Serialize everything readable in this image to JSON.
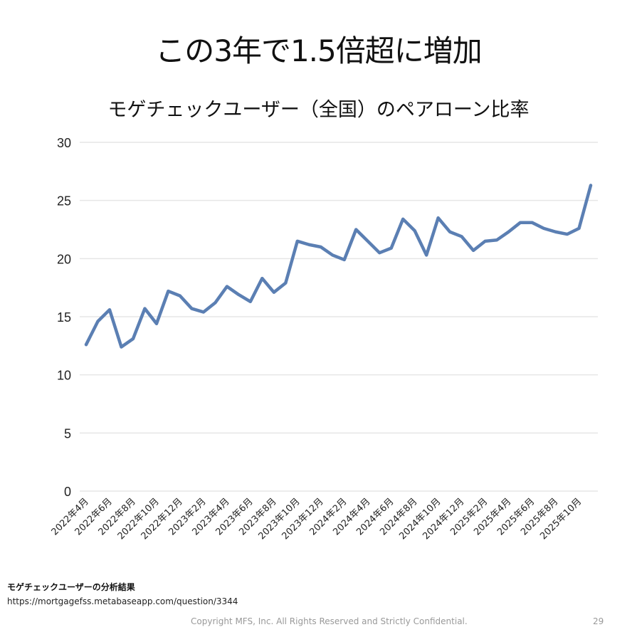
{
  "slide": {
    "title": "この3年で1.5倍超に増加",
    "source_label": "モゲチェックユーザーの分析結果",
    "source_url": "https://mortgagefss.metabaseapp.com/question/3344",
    "copyright": "Copyright MFS, Inc.  All Rights Reserved and Strictly Confidential.",
    "page_number": "29"
  },
  "chart_data": {
    "type": "line",
    "title": "モゲチェックユーザー（全国）のペアローン比率",
    "xlabel": "",
    "ylabel": "",
    "ylim": [
      0,
      30
    ],
    "yticks": [
      "0",
      "5",
      "10",
      "15",
      "20",
      "25",
      "30"
    ],
    "grid": true,
    "color": "#5b7fb3",
    "x_tick_labels": [
      "2022年4月",
      "2022年6月",
      "2022年8月",
      "2022年10月",
      "2022年12月",
      "2023年2月",
      "2023年4月",
      "2023年6月",
      "2023年8月",
      "2023年10月",
      "2023年12月",
      "2024年2月",
      "2024年4月",
      "2024年6月",
      "2024年8月",
      "2024年10月",
      "2024年12月",
      "2025年2月",
      "2025年4月",
      "2025年6月",
      "2025年8月",
      "2025年10月"
    ],
    "values": [
      12.6,
      14.6,
      15.6,
      12.4,
      13.1,
      15.7,
      14.4,
      17.2,
      16.8,
      15.7,
      15.4,
      16.2,
      17.6,
      16.9,
      16.3,
      18.3,
      17.1,
      17.9,
      21.5,
      21.2,
      21.0,
      20.3,
      19.9,
      22.5,
      21.5,
      20.5,
      20.9,
      23.4,
      22.4,
      20.3,
      23.5,
      22.3,
      21.9,
      20.7,
      21.5,
      21.6,
      22.3,
      23.1,
      23.1,
      22.6,
      22.3,
      22.1,
      22.6,
      26.3
    ]
  }
}
